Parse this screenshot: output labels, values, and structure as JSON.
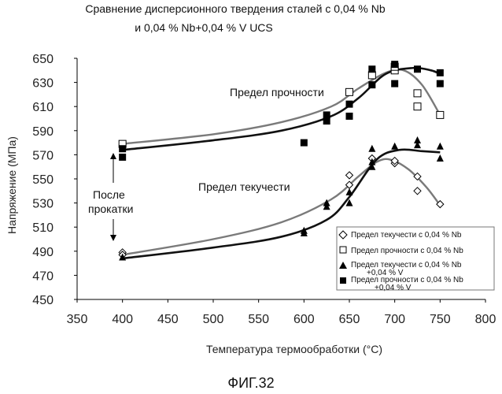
{
  "chart_data": {
    "type": "scatter",
    "title_line1": "Сравнение дисперсионного твердения сталей с 0,04 % Nb",
    "title_line2": "и 0,04 % Nb+0,04 % V UCS",
    "xlabel": "Температура термообработки (°C)",
    "ylabel": "Напряжение (МПа)",
    "xlim": [
      350,
      800
    ],
    "ylim": [
      450,
      650
    ],
    "xticks": [
      350,
      400,
      450,
      500,
      550,
      600,
      650,
      700,
      750,
      800
    ],
    "yticks": [
      450,
      470,
      490,
      510,
      530,
      550,
      570,
      590,
      610,
      630,
      650
    ],
    "grid": false,
    "legend_position": "bottom-right",
    "annotations": {
      "tensile": "Предел прочности",
      "yield": "Предел текучести",
      "after_rolling_1": "После",
      "after_rolling_2": "прокатки"
    },
    "series": [
      {
        "name": "Предел текучести с 0,04 % Nb",
        "marker": "diamond-open",
        "points": [
          [
            400,
            489
          ],
          [
            400,
            487
          ],
          [
            650,
            553
          ],
          [
            650,
            545
          ],
          [
            675,
            567
          ],
          [
            700,
            563
          ],
          [
            700,
            565
          ],
          [
            725,
            552
          ],
          [
            725,
            540
          ],
          [
            750,
            529
          ]
        ]
      },
      {
        "name": "Предел прочности с 0,04 % Nb",
        "marker": "square-open",
        "points": [
          [
            400,
            579
          ],
          [
            650,
            622
          ],
          [
            675,
            636
          ],
          [
            700,
            640
          ],
          [
            700,
            643
          ],
          [
            725,
            621
          ],
          [
            725,
            610
          ],
          [
            750,
            603
          ]
        ]
      },
      {
        "name_line1": "Предел текучести с 0,04 % Nb",
        "name_line2": "+0,04 % V",
        "marker": "triangle-filled",
        "points": [
          [
            400,
            485
          ],
          [
            600,
            507
          ],
          [
            600,
            505
          ],
          [
            625,
            530
          ],
          [
            625,
            527
          ],
          [
            650,
            539
          ],
          [
            650,
            530
          ],
          [
            675,
            575
          ],
          [
            675,
            560
          ],
          [
            675,
            564
          ],
          [
            700,
            577
          ],
          [
            725,
            582
          ],
          [
            725,
            578
          ],
          [
            750,
            577
          ],
          [
            750,
            567
          ]
        ]
      },
      {
        "name_line1": "Предел прочности  с 0,04 % Nb",
        "name_line2": "+0,04 % V",
        "marker": "square-filled",
        "points": [
          [
            400,
            575
          ],
          [
            400,
            568
          ],
          [
            600,
            580
          ],
          [
            625,
            603
          ],
          [
            625,
            598
          ],
          [
            650,
            612
          ],
          [
            650,
            602
          ],
          [
            675,
            641
          ],
          [
            675,
            628
          ],
          [
            700,
            645
          ],
          [
            700,
            629
          ],
          [
            725,
            641
          ],
          [
            750,
            638
          ],
          [
            750,
            629
          ]
        ]
      }
    ],
    "trend_lines": [
      {
        "style": "gray",
        "points": [
          [
            400,
            579
          ],
          [
            500,
            587
          ],
          [
            575,
            597
          ],
          [
            630,
            610
          ],
          [
            660,
            625
          ],
          [
            690,
            638
          ],
          [
            710,
            640
          ],
          [
            730,
            628
          ],
          [
            750,
            603
          ]
        ]
      },
      {
        "style": "black",
        "points": [
          [
            400,
            574
          ],
          [
            500,
            582
          ],
          [
            575,
            590
          ],
          [
            630,
            602
          ],
          [
            660,
            617
          ],
          [
            690,
            637
          ],
          [
            720,
            642
          ],
          [
            740,
            640
          ],
          [
            750,
            637
          ]
        ]
      },
      {
        "style": "gray",
        "points": [
          [
            400,
            487
          ],
          [
            500,
            500
          ],
          [
            575,
            514
          ],
          [
            630,
            533
          ],
          [
            660,
            552
          ],
          [
            680,
            564
          ],
          [
            695,
            566
          ],
          [
            715,
            558
          ],
          [
            735,
            543
          ],
          [
            750,
            528
          ]
        ]
      },
      {
        "style": "black",
        "points": [
          [
            400,
            484
          ],
          [
            500,
            493
          ],
          [
            575,
            502
          ],
          [
            625,
            516
          ],
          [
            650,
            535
          ],
          [
            680,
            566
          ],
          [
            705,
            574
          ],
          [
            730,
            573
          ],
          [
            750,
            572
          ]
        ]
      }
    ]
  },
  "figure_caption": "ФИГ.32"
}
